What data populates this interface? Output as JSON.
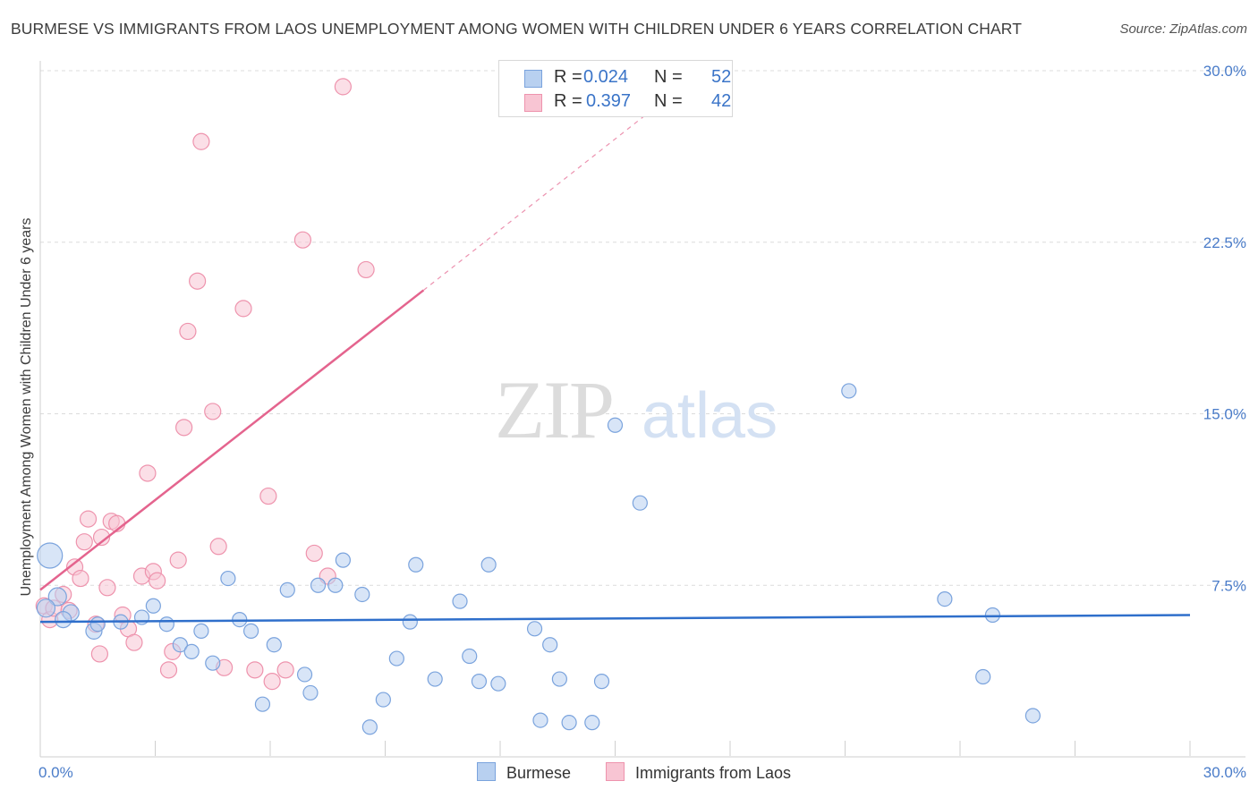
{
  "header": {
    "title": "BURMESE VS IMMIGRANTS FROM LAOS UNEMPLOYMENT AMONG WOMEN WITH CHILDREN UNDER 6 YEARS CORRELATION CHART",
    "source": "Source: ZipAtlas.com"
  },
  "watermark": {
    "zip": "ZIP",
    "atlas": "atlas"
  },
  "legend": {
    "rows": [
      {
        "r_label": "R =",
        "r_value": "0.024",
        "n_label": "N =",
        "n_value": "52"
      },
      {
        "r_label": "R =",
        "r_value": "0.397",
        "n_label": "N =",
        "n_value": "42"
      }
    ]
  },
  "bottom_legend": {
    "burmese": "Burmese",
    "laos": "Immigrants from Laos"
  },
  "colors": {
    "burmese_fill": "#b8d0f0",
    "burmese_stroke": "#7aa3dd",
    "burmese_line": "#2f6fcb",
    "laos_fill": "#f8c5d3",
    "laos_stroke": "#ee93ad",
    "laos_line": "#e4648e",
    "tick_label": "#4a7cc9",
    "grid": "#dcdcdc"
  },
  "chart_data": {
    "type": "scatter",
    "title": "BURMESE VS IMMIGRANTS FROM LAOS UNEMPLOYMENT AMONG WOMEN WITH CHILDREN UNDER 6 YEARS CORRELATION CHART",
    "xlabel": "",
    "ylabel": "Unemployment Among Women with Children Under 6 years",
    "xlim": [
      0,
      30
    ],
    "ylim": [
      0,
      30
    ],
    "x_tick_labels": [
      "0.0%",
      "30.0%"
    ],
    "y_ticks": [
      7.5,
      15.0,
      22.5,
      30.0
    ],
    "y_tick_labels": [
      "7.5%",
      "15.0%",
      "22.5%",
      "30.0%"
    ],
    "grid": "horizontal dashed",
    "legend_position": "top-center",
    "series": [
      {
        "name": "Burmese",
        "r": 0.024,
        "n": 52,
        "trend": {
          "x": [
            0,
            30
          ],
          "y": [
            5.9,
            6.2
          ]
        },
        "points": [
          [
            0.25,
            8.8,
            14
          ],
          [
            0.45,
            7.0,
            10
          ],
          [
            0.8,
            6.3,
            9
          ],
          [
            1.4,
            5.5,
            9
          ],
          [
            1.5,
            5.8,
            8
          ],
          [
            2.1,
            5.9,
            8
          ],
          [
            2.65,
            6.1,
            8
          ],
          [
            2.95,
            6.6,
            8
          ],
          [
            3.3,
            5.8,
            8
          ],
          [
            3.65,
            4.9,
            8
          ],
          [
            3.95,
            4.6,
            8
          ],
          [
            4.2,
            5.5,
            8
          ],
          [
            4.5,
            4.1,
            8
          ],
          [
            4.9,
            7.8,
            8
          ],
          [
            5.2,
            6.0,
            8
          ],
          [
            5.5,
            5.5,
            8
          ],
          [
            5.8,
            2.3,
            8
          ],
          [
            6.1,
            4.9,
            8
          ],
          [
            6.45,
            7.3,
            8
          ],
          [
            6.9,
            3.6,
            8
          ],
          [
            7.05,
            2.8,
            8
          ],
          [
            7.25,
            7.5,
            8
          ],
          [
            7.7,
            7.5,
            8
          ],
          [
            7.9,
            8.6,
            8
          ],
          [
            8.4,
            7.1,
            8
          ],
          [
            8.6,
            1.3,
            8
          ],
          [
            8.95,
            2.5,
            8
          ],
          [
            9.3,
            4.3,
            8
          ],
          [
            9.65,
            5.9,
            8
          ],
          [
            9.8,
            8.4,
            8
          ],
          [
            10.3,
            3.4,
            8
          ],
          [
            10.95,
            6.8,
            8
          ],
          [
            11.2,
            4.4,
            8
          ],
          [
            11.45,
            3.3,
            8
          ],
          [
            11.7,
            8.4,
            8
          ],
          [
            11.95,
            3.2,
            8
          ],
          [
            12.9,
            5.6,
            8
          ],
          [
            13.05,
            1.6,
            8
          ],
          [
            13.3,
            4.9,
            8
          ],
          [
            13.55,
            3.4,
            8
          ],
          [
            13.8,
            1.5,
            8
          ],
          [
            14.4,
            1.5,
            8
          ],
          [
            14.65,
            3.3,
            8
          ],
          [
            15.0,
            14.5,
            8
          ],
          [
            15.65,
            11.1,
            8
          ],
          [
            21.1,
            16.0,
            8
          ],
          [
            23.6,
            6.9,
            8
          ],
          [
            24.6,
            3.5,
            8
          ],
          [
            24.85,
            6.2,
            8
          ],
          [
            25.9,
            1.8,
            8
          ],
          [
            0.15,
            6.5,
            10
          ],
          [
            0.6,
            6.0,
            9
          ]
        ]
      },
      {
        "name": "Immigrants from Laos",
        "r": 0.397,
        "n": 42,
        "trend": {
          "x": [
            0,
            10
          ],
          "y": [
            7.3,
            20.4
          ]
        },
        "trend_extension": {
          "x": [
            10,
            16.2
          ],
          "y": [
            20.4,
            28.6
          ]
        },
        "points": [
          [
            0.1,
            6.6,
            9
          ],
          [
            0.25,
            6.0,
            9
          ],
          [
            0.35,
            6.5,
            9
          ],
          [
            0.6,
            7.1,
            9
          ],
          [
            0.75,
            6.4,
            9
          ],
          [
            0.9,
            8.3,
            9
          ],
          [
            1.05,
            7.8,
            9
          ],
          [
            1.15,
            9.4,
            9
          ],
          [
            1.25,
            10.4,
            9
          ],
          [
            1.45,
            5.8,
            9
          ],
          [
            1.6,
            9.6,
            9
          ],
          [
            1.75,
            7.4,
            9
          ],
          [
            1.85,
            10.3,
            9
          ],
          [
            2.0,
            10.2,
            9
          ],
          [
            2.15,
            6.2,
            9
          ],
          [
            2.3,
            5.6,
            9
          ],
          [
            2.45,
            5.0,
            9
          ],
          [
            2.65,
            7.9,
            9
          ],
          [
            2.8,
            12.4,
            9
          ],
          [
            2.95,
            8.1,
            9
          ],
          [
            3.05,
            7.7,
            9
          ],
          [
            3.35,
            3.8,
            9
          ],
          [
            3.45,
            4.6,
            9
          ],
          [
            3.6,
            8.6,
            9
          ],
          [
            3.75,
            14.4,
            9
          ],
          [
            3.85,
            18.6,
            9
          ],
          [
            4.1,
            20.8,
            9
          ],
          [
            4.2,
            26.9,
            9
          ],
          [
            4.5,
            15.1,
            9
          ],
          [
            4.65,
            9.2,
            9
          ],
          [
            4.8,
            3.9,
            9
          ],
          [
            5.3,
            19.6,
            9
          ],
          [
            5.6,
            3.8,
            9
          ],
          [
            5.95,
            11.4,
            9
          ],
          [
            6.05,
            3.3,
            9
          ],
          [
            6.4,
            3.8,
            9
          ],
          [
            6.85,
            22.6,
            9
          ],
          [
            7.15,
            8.9,
            9
          ],
          [
            7.5,
            7.9,
            9
          ],
          [
            7.9,
            29.3,
            9
          ],
          [
            8.5,
            21.3,
            9
          ],
          [
            1.55,
            4.5,
            9
          ]
        ]
      }
    ]
  }
}
